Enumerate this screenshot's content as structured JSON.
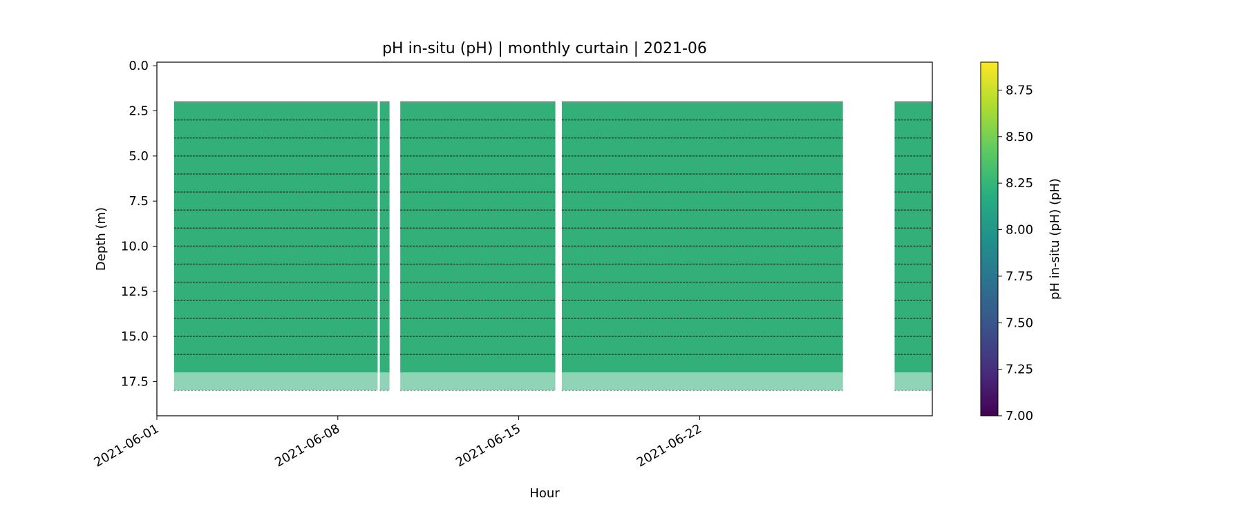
{
  "chart_data": {
    "type": "heatmap",
    "title": "pH in-situ (pH) | monthly curtain | 2021-06",
    "xlabel": "Hour",
    "ylabel": "Depth (m)",
    "x_range": [
      "2021-06-01",
      "2021-07-01"
    ],
    "ylim": [
      19.4,
      -0.2
    ],
    "y_inverted": true,
    "x_ticks": [
      "2021-06-01",
      "2021-06-08",
      "2021-06-15",
      "2021-06-22"
    ],
    "y_ticks": [
      0.0,
      2.5,
      5.0,
      7.5,
      10.0,
      12.5,
      15.0,
      17.5
    ],
    "y_tick_labels": [
      "0.0",
      "2.5",
      "5.0",
      "7.5",
      "10.0",
      "12.5",
      "15.0",
      "17.5"
    ],
    "colorbar": {
      "label": "pH in-situ (pH) (pH)",
      "colormap": "viridis",
      "range": [
        7.0,
        8.9
      ],
      "ticks": [
        7.0,
        7.25,
        7.5,
        7.75,
        8.0,
        8.25,
        8.5,
        8.75
      ],
      "tick_labels": [
        "7.00",
        "7.25",
        "7.50",
        "7.75",
        "8.00",
        "8.25",
        "8.50",
        "8.75"
      ]
    },
    "data_blocks": [
      {
        "start": "2021-06-01T16:00",
        "end": "2021-06-09T13:00",
        "top_depth": 2.0,
        "bottom_depth": 17.0,
        "ph": 8.2
      },
      {
        "start": "2021-06-09T15:00",
        "end": "2021-06-10T00:00",
        "top_depth": 2.0,
        "bottom_depth": 17.0,
        "ph": 8.2
      },
      {
        "start": "2021-06-10T10:00",
        "end": "2021-06-16T10:00",
        "top_depth": 2.0,
        "bottom_depth": 17.0,
        "ph": 8.2
      },
      {
        "start": "2021-06-16T16:00",
        "end": "2021-06-27T13:00",
        "top_depth": 2.0,
        "bottom_depth": 17.0,
        "ph": 8.2
      },
      {
        "start": "2021-06-29T13:00",
        "end": "2021-07-01T00:00",
        "top_depth": 2.0,
        "bottom_depth": 17.0,
        "ph": 8.2
      }
    ],
    "sensor_depths": [
      3,
      4,
      5,
      6,
      7,
      8,
      9,
      10,
      11,
      12,
      13,
      14,
      15,
      16
    ],
    "colors": {
      "fill": "#33b07a",
      "sensor_line": "#2f4a3c",
      "surface_line": "#8c8c8c"
    }
  }
}
